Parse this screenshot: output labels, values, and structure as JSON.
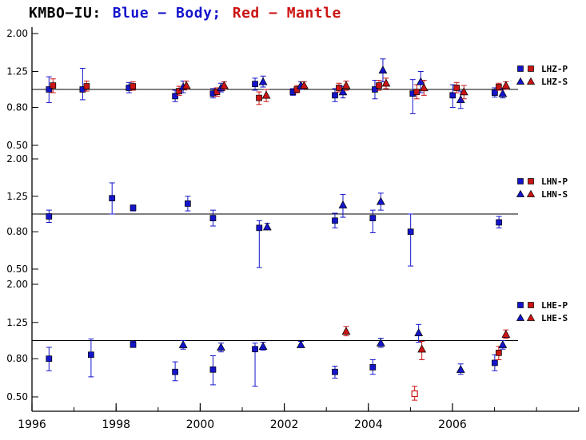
{
  "chart_data": {
    "type": "scatter",
    "title": {
      "station": "KMBO−IU:",
      "blue": "Blue − Body;",
      "red": "Red − Mantle"
    },
    "colors": {
      "body": "#1414cc",
      "mantle": "#cc1414",
      "axis": "#000000"
    },
    "y_scale": "log",
    "y_ticks": [
      "2.00",
      "1.25",
      "0.80",
      "0.50"
    ],
    "y_range": [
      0.5,
      2.0
    ],
    "reference_line": 1.0,
    "x_axis": {
      "major_ticks": [
        1996,
        1998,
        2000,
        2002,
        2004,
        2006
      ],
      "minor_step": 1,
      "range": [
        1996,
        2008.5
      ]
    },
    "legend_position": "right",
    "panels": [
      {
        "channel": "LHZ",
        "legend": {
          "p": "LHZ-P",
          "s": "LHZ-S"
        },
        "series": [
          {
            "key": "body-P",
            "type": "body",
            "marker": "square",
            "points": [
              [
                1996.5,
                1.0,
                0.85,
                1.17
              ],
              [
                1997.3,
                1.0,
                0.88,
                1.3
              ],
              [
                1998.4,
                1.02,
                0.96,
                1.09
              ],
              [
                1999.5,
                0.92,
                0.86,
                0.99
              ],
              [
                2000.4,
                0.95,
                0.9,
                1.01
              ],
              [
                2001.4,
                1.07,
                0.99,
                1.15
              ],
              [
                2002.3,
                0.97,
                0.93,
                1.01
              ],
              [
                2003.3,
                0.93,
                0.86,
                1.01
              ],
              [
                2004.25,
                1.0,
                0.89,
                1.12
              ],
              [
                2005.15,
                0.95,
                0.74,
                1.13
              ],
              [
                2006.1,
                0.93,
                0.8,
                1.06
              ],
              [
                2007.1,
                0.96,
                0.91,
                1.02
              ]
            ]
          },
          {
            "key": "mantle-P",
            "type": "mantle",
            "marker": "square",
            "points": [
              [
                1996.5,
                1.05,
                0.96,
                1.14
              ],
              [
                1997.3,
                1.04,
                0.98,
                1.11
              ],
              [
                1998.4,
                1.04,
                0.99,
                1.1
              ],
              [
                1999.5,
                0.98,
                0.93,
                1.04
              ],
              [
                2000.4,
                0.97,
                0.92,
                1.02
              ],
              [
                2001.4,
                0.9,
                0.83,
                0.97
              ],
              [
                2002.3,
                1.0,
                0.96,
                1.05
              ],
              [
                2003.3,
                1.02,
                0.97,
                1.08
              ],
              [
                2004.25,
                1.05,
                0.99,
                1.12
              ],
              [
                2005.15,
                0.97,
                0.89,
                1.06
              ],
              [
                2006.1,
                1.02,
                0.96,
                1.09
              ],
              [
                2007.1,
                1.03,
                0.99,
                1.08
              ]
            ]
          },
          {
            "key": "body-S",
            "type": "body",
            "marker": "triangle",
            "points": [
              [
                1999.5,
                1.03,
                0.96,
                1.11
              ],
              [
                2000.4,
                1.02,
                0.97,
                1.08
              ],
              [
                2001.4,
                1.1,
                1.03,
                1.18
              ],
              [
                2002.3,
                1.05,
                1.0,
                1.1
              ],
              [
                2003.3,
                0.97,
                0.9,
                1.04
              ],
              [
                2004.25,
                1.27,
                1.1,
                1.46
              ],
              [
                2005.15,
                1.1,
                0.96,
                1.25
              ],
              [
                2006.1,
                0.88,
                0.79,
                0.98
              ],
              [
                2007.1,
                0.95,
                0.9,
                1.01
              ]
            ]
          },
          {
            "key": "mantle-S",
            "type": "mantle",
            "marker": "triangle",
            "points": [
              [
                1999.5,
                1.05,
                1.0,
                1.11
              ],
              [
                2000.4,
                1.05,
                1.0,
                1.1
              ],
              [
                2001.4,
                0.93,
                0.86,
                1.0
              ],
              [
                2002.3,
                1.05,
                1.01,
                1.1
              ],
              [
                2003.3,
                1.05,
                0.99,
                1.11
              ],
              [
                2004.25,
                1.08,
                1.01,
                1.15
              ],
              [
                2005.15,
                1.02,
                0.93,
                1.12
              ],
              [
                2006.1,
                0.97,
                0.89,
                1.05
              ],
              [
                2007.1,
                1.05,
                1.0,
                1.1
              ]
            ]
          }
        ]
      },
      {
        "channel": "LHN",
        "legend": {
          "p": "LHN-P",
          "s": "LHN-S"
        },
        "series": [
          {
            "key": "body-P",
            "type": "body",
            "marker": "square",
            "points": [
              [
                1996.5,
                0.97,
                0.9,
                1.05
              ],
              [
                1998.0,
                1.22,
                1.0,
                1.48
              ],
              [
                1998.5,
                1.08,
                1.04,
                1.12
              ],
              [
                1999.8,
                1.14,
                1.04,
                1.25
              ],
              [
                2000.4,
                0.95,
                0.86,
                1.05
              ],
              [
                2001.5,
                0.84,
                0.51,
                0.92
              ],
              [
                2003.3,
                0.92,
                0.84,
                1.01
              ],
              [
                2004.2,
                0.95,
                0.79,
                1.05
              ],
              [
                2005.1,
                0.8,
                0.52,
                1.0
              ],
              [
                2007.2,
                0.9,
                0.84,
                0.97
              ]
            ]
          },
          {
            "key": "body-S",
            "type": "body",
            "marker": "triangle",
            "points": [
              [
                2001.5,
                0.85,
                0.82,
                0.89
              ],
              [
                2003.3,
                1.12,
                0.96,
                1.28
              ],
              [
                2004.2,
                1.17,
                1.05,
                1.3
              ]
            ]
          }
        ]
      },
      {
        "channel": "LHE",
        "legend": {
          "p": "LHE-P",
          "s": "LHE-S"
        },
        "series": [
          {
            "key": "body-P",
            "type": "body",
            "marker": "square",
            "points": [
              [
                1996.5,
                0.8,
                0.69,
                0.92
              ],
              [
                1997.5,
                0.84,
                0.64,
                1.02
              ],
              [
                1998.5,
                0.95,
                0.92,
                0.99
              ],
              [
                1999.5,
                0.68,
                0.61,
                0.77
              ],
              [
                2000.4,
                0.7,
                0.58,
                0.83
              ],
              [
                2001.4,
                0.9,
                0.57,
                0.97
              ],
              [
                2003.3,
                0.68,
                0.63,
                0.73
              ],
              [
                2004.2,
                0.72,
                0.66,
                0.79
              ],
              [
                2007.1,
                0.76,
                0.69,
                0.84
              ]
            ]
          },
          {
            "key": "mantle-P",
            "type": "mantle",
            "marker": "square",
            "points": [
              [
                2005.1,
                0.52,
                0.48,
                0.57,
                "open"
              ],
              [
                2007.1,
                0.86,
                0.79,
                0.93
              ]
            ]
          },
          {
            "key": "body-S",
            "type": "body",
            "marker": "triangle",
            "points": [
              [
                1999.5,
                0.95,
                0.9,
                1.0
              ],
              [
                2000.4,
                0.92,
                0.87,
                0.97
              ],
              [
                2001.4,
                0.93,
                0.89,
                0.98
              ],
              [
                2002.3,
                0.95,
                0.92,
                0.99
              ],
              [
                2004.2,
                0.97,
                0.92,
                1.03
              ],
              [
                2005.1,
                1.1,
                0.98,
                1.22
              ],
              [
                2006.1,
                0.7,
                0.66,
                0.75
              ],
              [
                2007.1,
                0.95,
                0.9,
                1.0
              ]
            ]
          },
          {
            "key": "mantle-S",
            "type": "mantle",
            "marker": "triangle",
            "points": [
              [
                2003.3,
                1.12,
                1.06,
                1.19
              ],
              [
                2005.1,
                0.9,
                0.79,
                0.99
              ],
              [
                2007.1,
                1.08,
                1.03,
                1.14
              ]
            ]
          }
        ]
      }
    ]
  }
}
